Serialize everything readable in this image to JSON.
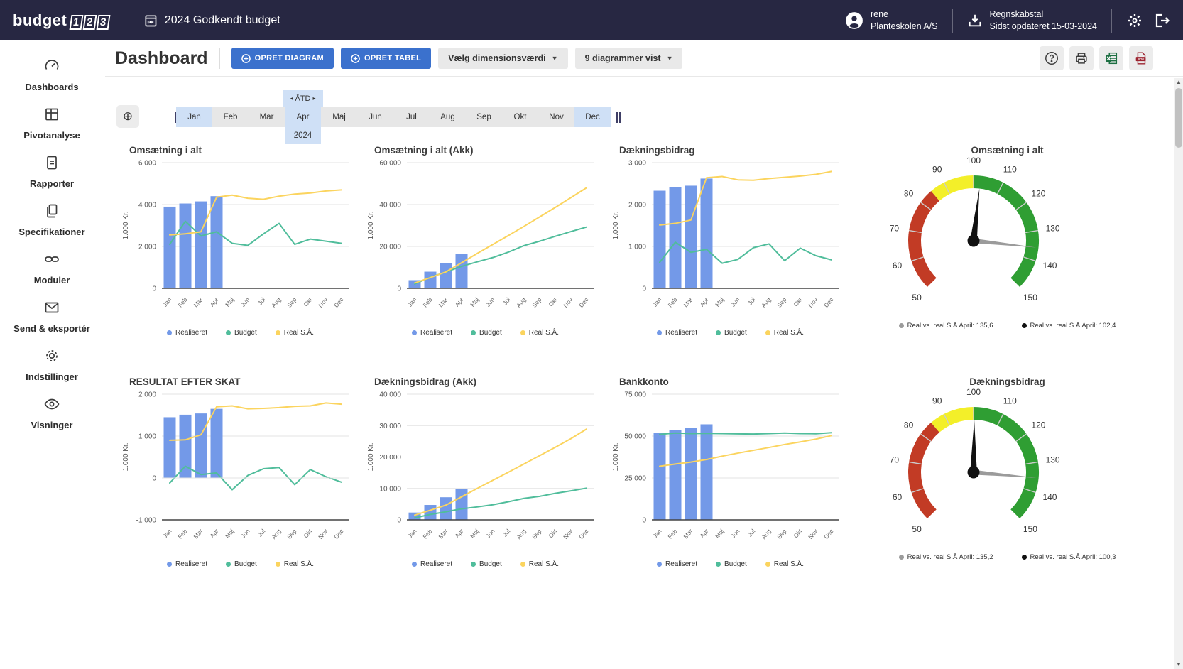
{
  "topbar": {
    "logo_text": "budget",
    "logo_digits": "123",
    "title": "2024 Godkendt budget",
    "user": {
      "name": "rene",
      "company": "Planteskolen A/S"
    },
    "data_status": {
      "label": "Regnskabstal",
      "updated": "Sidst opdateret 15-03-2024"
    }
  },
  "sidebar": {
    "items": [
      {
        "label": "Dashboards",
        "icon": "dashboard-gauge-icon"
      },
      {
        "label": "Pivotanalyse",
        "icon": "pivot-table-icon"
      },
      {
        "label": "Rapporter",
        "icon": "report-document-icon"
      },
      {
        "label": "Specifikationer",
        "icon": "specifications-pages-icon"
      },
      {
        "label": "Moduler",
        "icon": "modules-link-icon"
      },
      {
        "label": "Send & eksportér",
        "icon": "envelope-icon"
      },
      {
        "label": "Indstillinger",
        "icon": "settings-gear-icon"
      },
      {
        "label": "Visninger",
        "icon": "views-eye-icon"
      }
    ]
  },
  "toolbar": {
    "page_title": "Dashboard",
    "create_chart_label": "OPRET DIAGRAM",
    "create_table_label": "OPRET TABEL",
    "dimension_dropdown_label": "Vælg dimensionsværdi",
    "charts_shown_dropdown_label": "9 diagrammer vist"
  },
  "timeline": {
    "months": [
      "Jan",
      "Feb",
      "Mar",
      "Apr",
      "Maj",
      "Jun",
      "Jul",
      "Aug",
      "Sep",
      "Okt",
      "Nov",
      "Dec"
    ],
    "range_start": "Jan",
    "range_end": "Dec",
    "current_month": "Apr",
    "ytd_label": "ÅTD",
    "year": "2024"
  },
  "legend": {
    "realiseret": "Realiseret",
    "budget": "Budget",
    "real_sa": "Real S.Å."
  },
  "colors": {
    "topbar_bg": "#272742",
    "accent_blue": "#3b71cd",
    "selection_blue": "#cfe0f6",
    "bar_blue": "#7399e8",
    "line_green": "#50bd9b",
    "line_yellow": "#fbd45e",
    "gauge_red": "#c23b25",
    "gauge_yellow": "#f3ef29",
    "gauge_green": "#2f9e33",
    "needle_black": "#111111",
    "needle_gray": "#9b9b9b",
    "gridline": "#e3e3e3",
    "axis": "#444444"
  },
  "chart_data": [
    {
      "type": "combo",
      "title": "Omsætning i alt",
      "ylabel": "1.000 Kr.",
      "ylim": [
        0,
        6000
      ],
      "yticks": [
        0,
        2000,
        4000,
        6000
      ],
      "categories": [
        "Jan",
        "Feb",
        "Mar",
        "Apr",
        "Maj",
        "Jun",
        "Jul",
        "Aug",
        "Sep",
        "Okt",
        "Nov",
        "Dec"
      ],
      "series": [
        {
          "name": "Realiseret",
          "type": "bar",
          "values": [
            3900,
            4050,
            4150,
            4400,
            null,
            null,
            null,
            null,
            null,
            null,
            null,
            null
          ]
        },
        {
          "name": "Budget",
          "type": "line",
          "values": [
            2100,
            3200,
            2500,
            2700,
            2150,
            2050,
            2600,
            3100,
            2100,
            2350,
            2250,
            2150
          ]
        },
        {
          "name": "Real S.Å.",
          "type": "line",
          "values": [
            2550,
            2600,
            2700,
            4350,
            4450,
            4300,
            4250,
            4400,
            4500,
            4550,
            4650,
            4700
          ]
        }
      ]
    },
    {
      "type": "combo",
      "title": "Omsætning i alt (Akk)",
      "ylabel": "1.000 Kr.",
      "ylim": [
        0,
        60000
      ],
      "yticks": [
        0,
        20000,
        40000,
        60000
      ],
      "categories": [
        "Jan",
        "Feb",
        "Mar",
        "Apr",
        "Maj",
        "Jun",
        "Jul",
        "Aug",
        "Sep",
        "Okt",
        "Nov",
        "Dec"
      ],
      "series": [
        {
          "name": "Realiseret",
          "type": "bar",
          "values": [
            3900,
            7950,
            12100,
            16450,
            null,
            null,
            null,
            null,
            null,
            null,
            null,
            null
          ]
        },
        {
          "name": "Budget",
          "type": "line",
          "values": [
            2100,
            5300,
            7800,
            10500,
            12650,
            14700,
            17300,
            20400,
            22500,
            24850,
            27100,
            29250
          ]
        },
        {
          "name": "Real S.Å.",
          "type": "line",
          "values": [
            2550,
            5150,
            7850,
            12200,
            16650,
            20950,
            25200,
            29600,
            34100,
            38650,
            43300,
            48000
          ]
        }
      ]
    },
    {
      "type": "combo",
      "title": "Dækningsbidrag",
      "ylabel": "1.000 Kr.",
      "ylim": [
        0,
        3000
      ],
      "yticks": [
        0,
        1000,
        2000,
        3000
      ],
      "categories": [
        "Jan",
        "Feb",
        "Mar",
        "Apr",
        "Maj",
        "Jun",
        "Jul",
        "Aug",
        "Sep",
        "Okt",
        "Nov",
        "Dec"
      ],
      "series": [
        {
          "name": "Realiseret",
          "type": "bar",
          "values": [
            2330,
            2410,
            2450,
            2620,
            null,
            null,
            null,
            null,
            null,
            null,
            null,
            null
          ]
        },
        {
          "name": "Budget",
          "type": "line",
          "values": [
            620,
            1100,
            860,
            930,
            600,
            690,
            970,
            1060,
            660,
            960,
            780,
            680
          ]
        },
        {
          "name": "Real S.Å.",
          "type": "line",
          "values": [
            1510,
            1550,
            1630,
            2640,
            2670,
            2590,
            2580,
            2620,
            2650,
            2680,
            2720,
            2790
          ]
        }
      ]
    },
    {
      "type": "gauge",
      "title": "Omsætning i alt",
      "min": 50,
      "max": 150,
      "tick_step": 10,
      "zones": [
        {
          "from": 50,
          "to": 85,
          "color": "red"
        },
        {
          "from": 85,
          "to": 100,
          "color": "yellow"
        },
        {
          "from": 100,
          "to": 150,
          "color": "green"
        }
      ],
      "needles": [
        {
          "color": "gray",
          "value": 135.6,
          "label": "Real vs. real S.Å April: 135,6"
        },
        {
          "color": "black",
          "value": 102.4,
          "label": "Real vs. real S.Å April: 102,4"
        }
      ]
    },
    {
      "type": "combo",
      "title": "RESULTAT EFTER SKAT",
      "ylabel": "1.000 Kr.",
      "ylim": [
        -1000,
        2000
      ],
      "yticks": [
        -1000,
        0,
        1000,
        2000
      ],
      "categories": [
        "Jan",
        "Feb",
        "Mar",
        "Apr",
        "Maj",
        "Jun",
        "Jul",
        "Aug",
        "Sep",
        "Okt",
        "Nov",
        "Dec"
      ],
      "series": [
        {
          "name": "Realiseret",
          "type": "bar",
          "values": [
            1450,
            1510,
            1540,
            1650,
            null,
            null,
            null,
            null,
            null,
            null,
            null,
            null
          ]
        },
        {
          "name": "Budget",
          "type": "line",
          "values": [
            -120,
            280,
            80,
            120,
            -280,
            60,
            220,
            250,
            -160,
            200,
            30,
            -100
          ]
        },
        {
          "name": "Real S.Å.",
          "type": "line",
          "values": [
            900,
            910,
            1030,
            1700,
            1720,
            1650,
            1660,
            1680,
            1710,
            1720,
            1790,
            1760
          ]
        }
      ]
    },
    {
      "type": "combo",
      "title": "Dækningsbidrag (Akk)",
      "ylabel": "1.000 Kr.",
      "ylim": [
        0,
        40000
      ],
      "yticks": [
        0,
        10000,
        20000,
        30000,
        40000
      ],
      "categories": [
        "Jan",
        "Feb",
        "Mar",
        "Apr",
        "Maj",
        "Jun",
        "Jul",
        "Aug",
        "Sep",
        "Okt",
        "Nov",
        "Dec"
      ],
      "series": [
        {
          "name": "Realiseret",
          "type": "bar",
          "values": [
            2330,
            4740,
            7190,
            9810,
            null,
            null,
            null,
            null,
            null,
            null,
            null,
            null
          ]
        },
        {
          "name": "Budget",
          "type": "line",
          "values": [
            620,
            1720,
            2580,
            3510,
            4110,
            4800,
            5770,
            6830,
            7490,
            8450,
            9230,
            10100
          ]
        },
        {
          "name": "Real S.Å.",
          "type": "line",
          "values": [
            1510,
            3060,
            4690,
            7330,
            10000,
            12590,
            15170,
            17790,
            20440,
            23120,
            25840,
            28900
          ]
        }
      ]
    },
    {
      "type": "combo",
      "title": "Bankkonto",
      "ylabel": "1.000 Kr.",
      "ylim": [
        0,
        75000
      ],
      "yticks": [
        0,
        25000,
        50000,
        75000
      ],
      "categories": [
        "Jan",
        "Feb",
        "Mar",
        "Apr",
        "Maj",
        "Jun",
        "Jul",
        "Aug",
        "Sep",
        "Okt",
        "Nov",
        "Dec"
      ],
      "series": [
        {
          "name": "Realiseret",
          "type": "bar",
          "values": [
            52000,
            53500,
            55000,
            57000,
            null,
            null,
            null,
            null,
            null,
            null,
            null,
            null
          ]
        },
        {
          "name": "Budget",
          "type": "line",
          "values": [
            51000,
            51800,
            51500,
            51600,
            51500,
            51300,
            51200,
            51500,
            51800,
            51500,
            51400,
            52000
          ]
        },
        {
          "name": "Real S.Å.",
          "type": "line",
          "values": [
            32000,
            33300,
            34500,
            36000,
            38000,
            39800,
            41500,
            43200,
            45000,
            46500,
            48200,
            50300
          ]
        }
      ]
    },
    {
      "type": "gauge",
      "title": "Dækningsbidrag",
      "min": 50,
      "max": 150,
      "tick_step": 10,
      "zones": [
        {
          "from": 50,
          "to": 85,
          "color": "red"
        },
        {
          "from": 85,
          "to": 100,
          "color": "yellow"
        },
        {
          "from": 100,
          "to": 150,
          "color": "green"
        }
      ],
      "needles": [
        {
          "color": "gray",
          "value": 135.2,
          "label": "Real vs. real S.Å April: 135,2"
        },
        {
          "color": "black",
          "value": 100.3,
          "label": "Real vs. real S.Å April: 100,3"
        }
      ]
    }
  ]
}
